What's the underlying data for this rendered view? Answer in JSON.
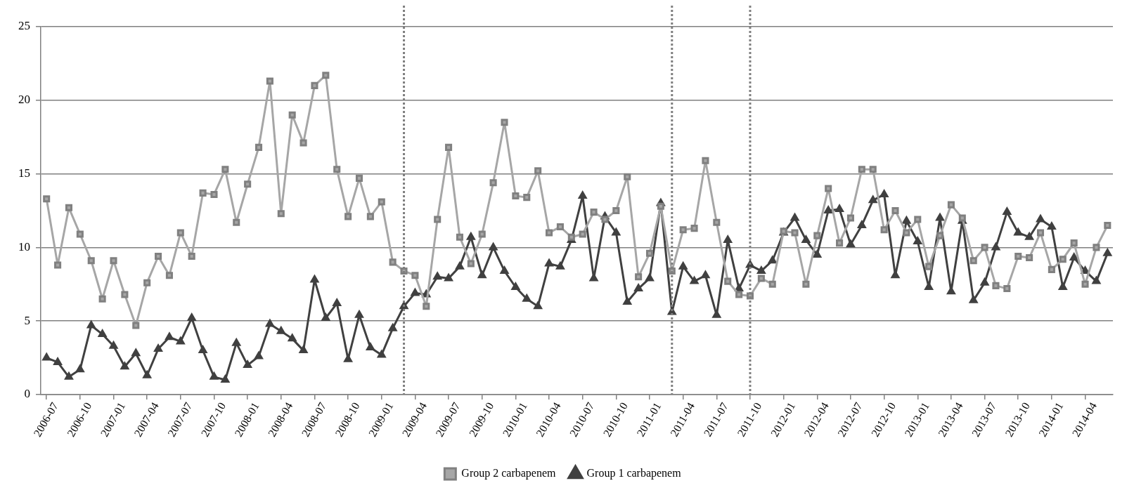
{
  "chart_data": {
    "type": "line",
    "x": [
      "2006-07",
      "2006-08",
      "2006-09",
      "2006-10",
      "2006-11",
      "2006-12",
      "2007-01",
      "2007-02",
      "2007-03",
      "2007-04",
      "2007-05",
      "2007-06",
      "2007-07",
      "2007-08",
      "2007-09",
      "2007-10",
      "2007-11",
      "2007-12",
      "2008-01",
      "2008-02",
      "2008-03",
      "2008-04",
      "2008-05",
      "2008-06",
      "2008-07",
      "2008-08",
      "2008-09",
      "2008-10",
      "2008-11",
      "2008-12",
      "2009-01",
      "2009-02",
      "2009-03",
      "2009-04",
      "2009-05",
      "2009-06",
      "2009-07",
      "2009-08",
      "2009-09",
      "2009-10",
      "2009-11",
      "2009-12",
      "2010-01",
      "2010-02",
      "2010-03",
      "2010-04",
      "2010-05",
      "2010-06",
      "2010-07",
      "2010-08",
      "2010-09",
      "2010-10",
      "2010-11",
      "2010-12",
      "2011-01",
      "2011-02",
      "2011-03",
      "2011-04",
      "2011-05",
      "2011-06",
      "2011-07",
      "2011-08",
      "2011-09",
      "2011-10",
      "2011-11",
      "2011-12",
      "2012-01",
      "2012-02",
      "2012-03",
      "2012-04",
      "2012-05",
      "2012-06",
      "2012-07",
      "2012-08",
      "2012-09",
      "2012-10",
      "2012-11",
      "2012-12",
      "2013-01",
      "2013-02",
      "2013-03",
      "2013-04",
      "2013-05",
      "2013-06",
      "2013-07",
      "2013-08",
      "2013-09",
      "2013-10",
      "2013-11",
      "2013-12",
      "2014-01",
      "2014-02",
      "2014-03",
      "2014-04",
      "2014-05",
      "2014-06"
    ],
    "series": [
      {
        "name": "Group 2 carbapenem",
        "color": "#a6a6a6",
        "marker": "square",
        "values": [
          13.3,
          8.8,
          12.7,
          10.9,
          9.1,
          6.5,
          9.1,
          6.8,
          4.7,
          7.6,
          9.4,
          8.1,
          11.0,
          9.4,
          13.7,
          13.6,
          15.3,
          11.7,
          14.3,
          16.8,
          21.3,
          12.3,
          19.0,
          17.1,
          21.0,
          21.7,
          15.3,
          12.1,
          14.7,
          12.1,
          13.1,
          9.0,
          8.4,
          8.1,
          6.0,
          11.9,
          16.8,
          10.7,
          8.9,
          10.9,
          14.4,
          18.5,
          13.5,
          13.4,
          15.2,
          11.0,
          11.4,
          10.7,
          10.9,
          12.4,
          11.9,
          12.5,
          14.8,
          8.0,
          9.6,
          12.8,
          8.4,
          11.2,
          11.3,
          15.9,
          11.7,
          7.7,
          6.8,
          6.7,
          7.9,
          7.5,
          11.1,
          11.0,
          7.5,
          10.8,
          14.0,
          10.3,
          12.0,
          15.3,
          15.3,
          11.2,
          12.5,
          11.0,
          11.9,
          8.7,
          10.8,
          12.9,
          12.0,
          9.1,
          10.0,
          7.4,
          7.2,
          9.4,
          9.3,
          11.0,
          8.5,
          9.2,
          10.3,
          7.5,
          10.0,
          11.5
        ]
      },
      {
        "name": "Group 1 carbapenem",
        "color": "#404040",
        "marker": "triangle",
        "values": [
          2.5,
          2.2,
          1.2,
          1.7,
          4.7,
          4.1,
          3.3,
          1.9,
          2.8,
          1.3,
          3.1,
          3.9,
          3.6,
          5.2,
          3.0,
          1.2,
          1.0,
          3.5,
          2.0,
          2.6,
          4.8,
          4.3,
          3.8,
          3.0,
          7.8,
          5.2,
          6.2,
          2.4,
          5.4,
          3.2,
          2.7,
          4.5,
          6.0,
          6.9,
          6.8,
          8.0,
          7.9,
          8.7,
          10.7,
          8.1,
          10.0,
          8.4,
          7.3,
          6.5,
          6.0,
          8.9,
          8.7,
          10.5,
          13.5,
          7.9,
          12.1,
          11.0,
          6.3,
          7.2,
          7.9,
          13.0,
          5.6,
          8.7,
          7.7,
          8.1,
          5.4,
          10.5,
          7.2,
          8.8,
          8.4,
          9.1,
          11.0,
          12.0,
          10.5,
          9.5,
          12.5,
          12.6,
          10.2,
          11.5,
          13.2,
          13.6,
          8.1,
          11.8,
          10.4,
          7.3,
          12.0,
          7.0,
          11.8,
          6.4,
          7.6,
          10.0,
          12.4,
          11.0,
          10.7,
          11.9,
          11.4,
          7.3,
          9.3,
          8.4,
          7.7,
          9.6
        ]
      }
    ],
    "xlim": [
      "2006-06-16",
      "2014-06-16"
    ],
    "xticks": [
      {
        "value": "2006-07-01",
        "label": "2006-07"
      },
      {
        "value": "2006-10-01",
        "label": "2006-10"
      },
      {
        "value": "2007-01-01",
        "label": "2007-01"
      },
      {
        "value": "2007-04-01",
        "label": "2007-04"
      },
      {
        "value": "2007-07-01",
        "label": "2007-07"
      },
      {
        "value": "2007-10-01",
        "label": "2007-10"
      },
      {
        "value": "2008-01-01",
        "label": "2008-01"
      },
      {
        "value": "2008-04-01",
        "label": "2008-04"
      },
      {
        "value": "2008-07-01",
        "label": "2008-07"
      },
      {
        "value": "2008-10-01",
        "label": "2008-10"
      },
      {
        "value": "2009-01-01",
        "label": "2009-01"
      },
      {
        "value": "2009-04-01",
        "label": "2009-04"
      },
      {
        "value": "2009-07-01",
        "label": "2009-07"
      },
      {
        "value": "2009-10-01",
        "label": "2009-10"
      },
      {
        "value": "2010-01-01",
        "label": "2010-01"
      },
      {
        "value": "2010-04-01",
        "label": "2010-04"
      },
      {
        "value": "2010-07-01",
        "label": "2010-07"
      },
      {
        "value": "2010-10-01",
        "label": "2010-10"
      },
      {
        "value": "2011-01-01",
        "label": "2011-01"
      },
      {
        "value": "2011-04-01",
        "label": "2011-04"
      },
      {
        "value": "2011-07-01",
        "label": "2011-07"
      },
      {
        "value": "2011-10-01",
        "label": "2011-10"
      },
      {
        "value": "2012-01-01",
        "label": "2012-01"
      },
      {
        "value": "2012-04-01",
        "label": "2012-04"
      },
      {
        "value": "2012-07-01",
        "label": "2012-07"
      },
      {
        "value": "2012-10-01",
        "label": "2012-10"
      },
      {
        "value": "2013-01-01",
        "label": "2013-01"
      },
      {
        "value": "2013-04-01",
        "label": "2013-04"
      },
      {
        "value": "2013-07-01",
        "label": "2013-07"
      },
      {
        "value": "2013-10-01",
        "label": "2013-10"
      },
      {
        "value": "2014-01-01",
        "label": "2014-01"
      },
      {
        "value": "2014-04-01",
        "label": "2014-04"
      }
    ],
    "ylim": [
      0,
      25
    ],
    "yticks": [
      0,
      5,
      10,
      15,
      20,
      25
    ],
    "grid": "y",
    "legend": "bottom",
    "ref_lines": [
      {
        "axis": "x",
        "value": "2009-03",
        "color": "#7f7f7f",
        "line_style": "dotted"
      },
      {
        "axis": "x",
        "value": "2011-03",
        "color": "#7f7f7f",
        "line_style": "dotted"
      },
      {
        "axis": "x",
        "value": "2011-10",
        "color": "#7f7f7f",
        "line_style": "dotted"
      }
    ]
  }
}
